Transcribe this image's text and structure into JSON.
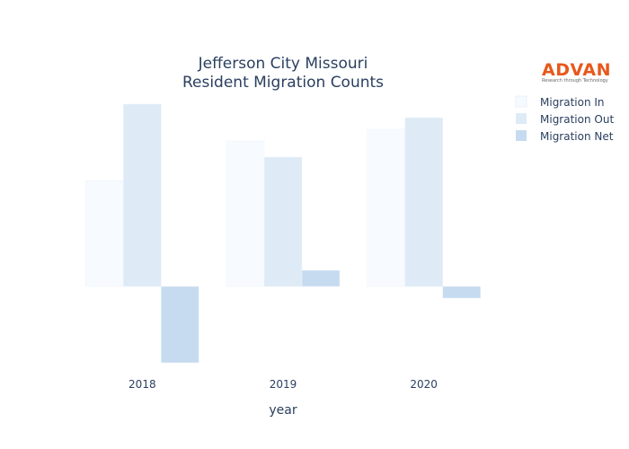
{
  "chart_data": {
    "type": "bar",
    "title_line1": "Jefferson City Missouri",
    "title_line2": "Resident Migration Counts",
    "xlabel": "year",
    "ylabel": "",
    "categories": [
      "2018",
      "2019",
      "2020"
    ],
    "series": [
      {
        "name": "Migration In",
        "values": [
          1180,
          1620,
          1750
        ],
        "color": "#f7fbff"
      },
      {
        "name": "Migration Out",
        "values": [
          2030,
          1440,
          1880
        ],
        "color": "#deebf7"
      },
      {
        "name": "Migration Net",
        "values": [
          -850,
          180,
          -130
        ],
        "color": "#c6dbef"
      }
    ],
    "ylim": [
      -900,
      2100
    ],
    "grid": false,
    "legend_position": "top-right"
  },
  "logo": {
    "name": "ADVAN",
    "tagline": "Research through Technology"
  }
}
